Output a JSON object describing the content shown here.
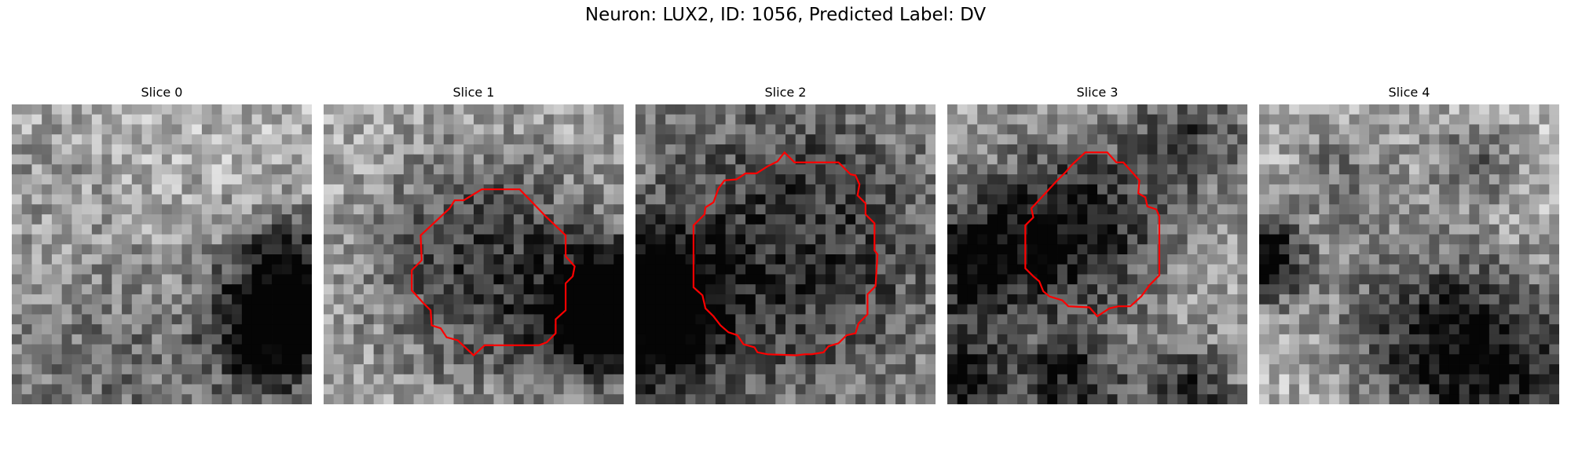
{
  "figure": {
    "title": "Neuron: LUX2, ID: 1056, Predicted Label: DV",
    "contour_color": "#ff0000"
  },
  "panels": [
    {
      "title": "Slice 0",
      "has_contour": false
    },
    {
      "title": "Slice 1",
      "has_contour": true
    },
    {
      "title": "Slice 2",
      "has_contour": true
    },
    {
      "title": "Slice 3",
      "has_contour": true
    },
    {
      "title": "Slice 4",
      "has_contour": false
    }
  ]
}
